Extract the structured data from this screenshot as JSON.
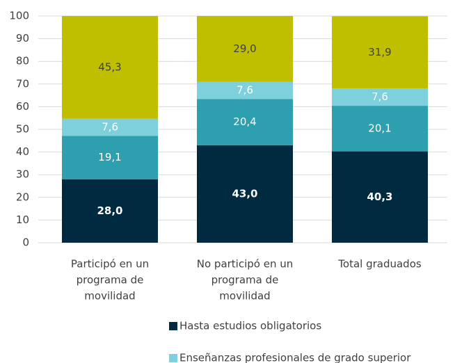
{
  "chart_data": {
    "type": "stacked_bar",
    "categories": [
      [
        "Participó en un",
        "programa de",
        "movilidad"
      ],
      [
        "No participó en un",
        "programa de",
        "movilidad"
      ],
      [
        "Total graduados"
      ]
    ],
    "series": [
      {
        "name": "Hasta estudios obligatorios",
        "color": "#002a40",
        "label_color": "#ffffff",
        "label_bold": true,
        "values": [
          28.0,
          43.0,
          40.3
        ],
        "value_labels": [
          "28,0",
          "43,0",
          "40,3"
        ]
      },
      {
        "color": "#2e9fae",
        "label_color": "#ffffff",
        "values": [
          19.1,
          20.4,
          20.1
        ],
        "value_labels": [
          "19,1",
          "20,4",
          "20,1"
        ]
      },
      {
        "name": "Enseñanzas profesionales de grado superior",
        "color": "#7dd0dc",
        "label_color": "#ffffff",
        "values": [
          7.6,
          7.6,
          7.6
        ],
        "value_labels": [
          "7,6",
          "7,6",
          "7,6"
        ]
      },
      {
        "color": "#bfbf00",
        "label_color": "#404040",
        "values": [
          45.3,
          29.0,
          31.9
        ],
        "value_labels": [
          "45,3",
          "29,0",
          "31,9"
        ]
      }
    ],
    "ylim": [
      0,
      100
    ],
    "yticks": [
      0,
      10,
      20,
      30,
      40,
      50,
      60,
      70,
      80,
      90,
      100
    ],
    "grid": true
  }
}
